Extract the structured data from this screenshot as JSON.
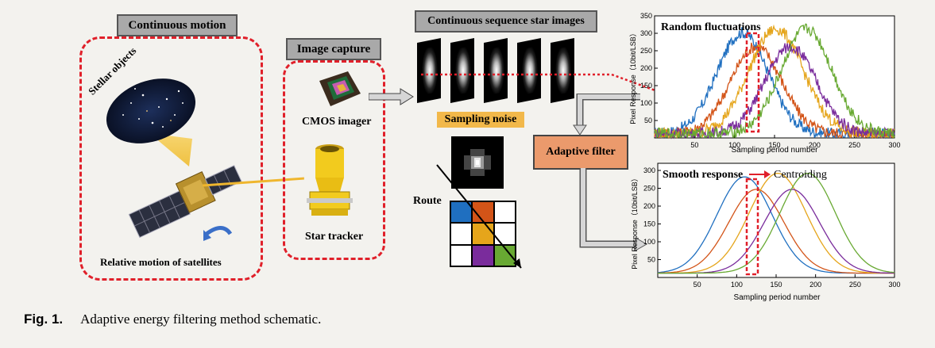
{
  "left_panel": {
    "title": "Continuous motion",
    "stellar_label": "Stellar objects",
    "satellite_label": "Relative motion of satellites"
  },
  "capture_panel": {
    "title": "Image capture",
    "cmos_label": "CMOS imager",
    "tracker_label": "Star tracker"
  },
  "sequence": {
    "title": "Continuous sequence star images",
    "noise_label": "Sampling noise",
    "route_label": "Route",
    "grid_colors": [
      "#1f6fc0",
      "#d35418",
      "#ffffff",
      "#ffffff",
      "#e5a51b",
      "#ffffff",
      "#ffffff",
      "#7a2c9c",
      "#68a932"
    ]
  },
  "filter": {
    "label": "Adaptive filter",
    "color": "#eb9a6c"
  },
  "chart_top": {
    "title": "Random fluctuations",
    "ylabel": "Pixel Response（10bit/LSB）",
    "xlabel": "Sampling period number",
    "xticks": [
      "50",
      "100",
      "150",
      "200",
      "250",
      "300"
    ],
    "yticks": [
      "50",
      "100",
      "150",
      "200",
      "250",
      "300",
      "350"
    ]
  },
  "chart_bottom": {
    "title": "Smooth response",
    "annotation": "Centroiding",
    "ylabel": "Pixel Response（10bit/LSB）",
    "xlabel": "Sampling period number",
    "xticks": [
      "50",
      "100",
      "150",
      "200",
      "250",
      "300"
    ],
    "yticks": [
      "50",
      "100",
      "150",
      "200",
      "250",
      "300"
    ]
  },
  "chart_data": [
    {
      "type": "line",
      "title": "Random fluctuations",
      "xlabel": "Sampling period number",
      "ylabel": "Pixel Response（10bit/LSB）",
      "xlim": [
        0,
        300
      ],
      "ylim": [
        0,
        350
      ],
      "series": [
        {
          "color": "#1f6fc0",
          "peak_x": 110,
          "peak_y": 290,
          "width": 32,
          "noisy": true
        },
        {
          "color": "#d35418",
          "peak_x": 127,
          "peak_y": 250,
          "width": 32,
          "noisy": true
        },
        {
          "color": "#e5a51b",
          "peak_x": 152,
          "peak_y": 300,
          "width": 34,
          "noisy": true
        },
        {
          "color": "#7a2c9c",
          "peak_x": 170,
          "peak_y": 250,
          "width": 32,
          "noisy": true
        },
        {
          "color": "#68a932",
          "peak_x": 190,
          "peak_y": 300,
          "width": 32,
          "noisy": true
        }
      ]
    },
    {
      "type": "line",
      "title": "Smooth response",
      "xlabel": "Sampling period number",
      "ylabel": "Pixel Response（10bit/LSB）",
      "xlim": [
        0,
        300
      ],
      "ylim": [
        0,
        320
      ],
      "series": [
        {
          "color": "#1f6fc0",
          "peak_x": 110,
          "peak_y": 270,
          "width": 35
        },
        {
          "color": "#d35418",
          "peak_x": 125,
          "peak_y": 235,
          "width": 35
        },
        {
          "color": "#e5a51b",
          "peak_x": 152,
          "peak_y": 280,
          "width": 36
        },
        {
          "color": "#7a2c9c",
          "peak_x": 170,
          "peak_y": 235,
          "width": 35
        },
        {
          "color": "#68a932",
          "peak_x": 190,
          "peak_y": 280,
          "width": 35
        }
      ]
    }
  ],
  "caption": {
    "fig_label": "Fig. 1.",
    "text": "Adaptive energy filtering method schematic."
  }
}
